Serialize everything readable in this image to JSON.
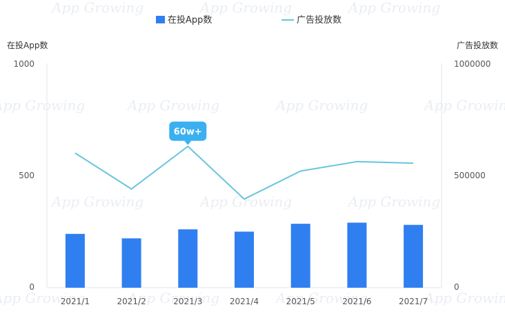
{
  "chart_data": {
    "type": "bar+line",
    "categories": [
      "2021/1",
      "2021/2",
      "2021/3",
      "2021/4",
      "2021/5",
      "2021/6",
      "2021/7"
    ],
    "series": [
      {
        "name": "在投App数",
        "type": "bar",
        "axis": "left",
        "values": [
          240,
          220,
          260,
          250,
          285,
          290,
          280
        ]
      },
      {
        "name": "广告投放数",
        "type": "line",
        "axis": "right",
        "values": [
          600000,
          440000,
          630000,
          395000,
          520000,
          562000,
          555000
        ]
      }
    ],
    "left_axis": {
      "title": "在投App数",
      "range": [
        0,
        1000
      ],
      "ticks": [
        "0",
        "500",
        "1000"
      ]
    },
    "right_axis": {
      "title": "广告投放数",
      "range": [
        0,
        1000000
      ],
      "ticks": [
        "0",
        "500000",
        "1000000"
      ]
    },
    "annotation": {
      "text": "60w+",
      "category_index": 2,
      "series": 1
    },
    "legend_position": "top-center",
    "grid": false,
    "colors": {
      "bar": "#2f7ff0",
      "line": "#66c5de",
      "annotation_bg": "#3ab0f0",
      "annotation_text": "#ffffff"
    },
    "watermark": "App Growing"
  }
}
